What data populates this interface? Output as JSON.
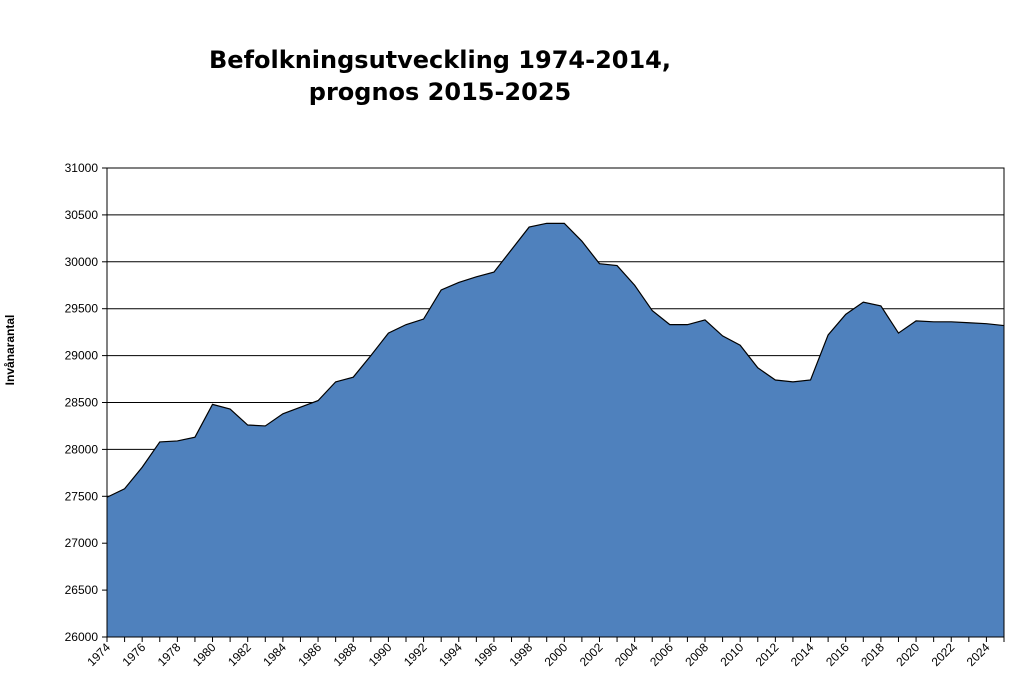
{
  "chart_data": {
    "type": "area",
    "title_line1": "Befolkningsutveckling 1974-2014,",
    "title_line2": "prognos 2015-2025",
    "xlabel": "",
    "ylabel": "Invånarantal",
    "ylim": [
      26000,
      31000
    ],
    "y_ticks": [
      "26000",
      "26500",
      "27000",
      "27500",
      "28000",
      "28500",
      "29000",
      "29500",
      "30000",
      "30500",
      "31000"
    ],
    "x_tick_labels": [
      "1974",
      "1976",
      "1978",
      "1980",
      "1982",
      "1984",
      "1986",
      "1988",
      "1990",
      "1992",
      "1994",
      "1996",
      "1998",
      "2000",
      "2002",
      "2004",
      "2006",
      "2008",
      "2010",
      "2012",
      "2014",
      "2016",
      "2018",
      "2020",
      "2022",
      "2024"
    ],
    "grid": true,
    "fill_color": "#4f81bd",
    "line_color": "#000000",
    "x": [
      1974,
      1975,
      1976,
      1977,
      1978,
      1979,
      1980,
      1981,
      1982,
      1983,
      1984,
      1985,
      1986,
      1987,
      1988,
      1989,
      1990,
      1991,
      1992,
      1993,
      1994,
      1995,
      1996,
      1997,
      1998,
      1999,
      2000,
      2001,
      2002,
      2003,
      2004,
      2005,
      2006,
      2007,
      2008,
      2009,
      2010,
      2011,
      2012,
      2013,
      2014,
      2015,
      2016,
      2017,
      2018,
      2019,
      2020,
      2021,
      2022,
      2023,
      2024,
      2025
    ],
    "values": [
      27490,
      27580,
      27810,
      28080,
      28090,
      28130,
      28480,
      28430,
      28260,
      28250,
      28380,
      28450,
      28520,
      28720,
      28770,
      29000,
      29240,
      29330,
      29390,
      29700,
      29780,
      29840,
      29890,
      30130,
      30370,
      30410,
      30410,
      30220,
      29980,
      29960,
      29750,
      29480,
      29330,
      29330,
      29380,
      29210,
      29110,
      28870,
      28740,
      28720,
      28740,
      29220,
      29440,
      29570,
      29530,
      29240,
      29370,
      29360,
      29360,
      29350,
      29340,
      29320
    ]
  }
}
